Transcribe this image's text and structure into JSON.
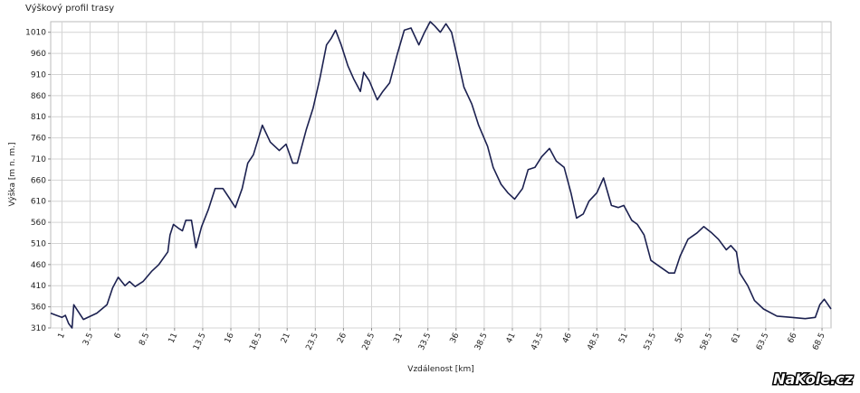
{
  "chart_data": {
    "type": "line",
    "title": "Výškový profil trasy",
    "x_label": "Vzdálenost [km]",
    "y_label": "Výška [m n. m.]",
    "x": [
      0,
      0.5,
      1.0,
      1.3,
      1.6,
      1.9,
      2.05,
      2.9,
      4.1,
      5.0,
      5.5,
      6.0,
      6.6,
      7.0,
      7.5,
      8.2,
      9.0,
      9.6,
      10.4,
      10.6,
      10.9,
      11.4,
      11.7,
      12.0,
      12.5,
      12.9,
      13.4,
      14.0,
      14.6,
      15.3,
      15.8,
      16.4,
      17.0,
      17.5,
      18.0,
      18.8,
      19.5,
      20.3,
      20.9,
      21.5,
      21.9,
      22.7,
      23.3,
      23.9,
      24.5,
      24.9,
      25.3,
      25.8,
      26.4,
      26.9,
      27.5,
      27.8,
      28.3,
      29.0,
      29.5,
      30.1,
      30.8,
      31.4,
      32.0,
      32.7,
      33.2,
      33.7,
      34.1,
      34.6,
      35.1,
      35.6,
      36.2,
      36.7,
      37.4,
      38.0,
      38.8,
      39.3,
      40.0,
      40.6,
      41.2,
      41.9,
      42.4,
      43.0,
      43.6,
      44.3,
      44.9,
      45.6,
      46.2,
      46.7,
      47.3,
      47.8,
      48.5,
      49.1,
      49.8,
      50.4,
      50.9,
      51.6,
      52.1,
      52.7,
      53.3,
      54.1,
      54.9,
      55.4,
      55.9,
      56.6,
      57.4,
      58.0,
      58.7,
      59.3,
      60.0,
      60.4,
      60.9,
      61.2,
      61.9,
      62.5,
      63.3,
      64.5,
      65.8,
      67.0,
      67.9,
      68.3,
      68.7,
      69.3
    ],
    "values": [
      345,
      340,
      335,
      340,
      320,
      310,
      365,
      330,
      345,
      365,
      405,
      430,
      410,
      420,
      408,
      420,
      445,
      460,
      490,
      530,
      555,
      545,
      540,
      565,
      565,
      500,
      550,
      590,
      640,
      640,
      620,
      595,
      640,
      700,
      720,
      790,
      750,
      730,
      745,
      700,
      700,
      780,
      830,
      900,
      980,
      995,
      1015,
      980,
      930,
      900,
      870,
      915,
      895,
      850,
      870,
      890,
      960,
      1015,
      1020,
      980,
      1010,
      1035,
      1025,
      1010,
      1030,
      1010,
      940,
      880,
      840,
      790,
      740,
      690,
      650,
      630,
      615,
      640,
      685,
      690,
      715,
      735,
      705,
      690,
      630,
      570,
      580,
      610,
      630,
      665,
      600,
      595,
      600,
      565,
      555,
      530,
      470,
      455,
      440,
      440,
      480,
      520,
      535,
      550,
      535,
      520,
      495,
      505,
      490,
      440,
      410,
      375,
      355,
      338,
      335,
      332,
      335,
      365,
      378,
      355
    ],
    "color": "#1c2150",
    "xlim": [
      0,
      69.3
    ],
    "ylim": [
      310,
      1035
    ],
    "xticks": [
      1,
      3.5,
      6,
      8.5,
      11,
      13.5,
      16,
      18.5,
      21,
      23.5,
      26,
      28.5,
      31,
      33.5,
      36,
      38.5,
      41,
      43.5,
      46,
      48.5,
      51,
      53.5,
      56,
      58.5,
      61,
      63.5,
      66,
      68.5
    ],
    "yticks": [
      310,
      360,
      410,
      460,
      510,
      560,
      610,
      660,
      710,
      760,
      810,
      860,
      910,
      960,
      1010
    ],
    "grid": true
  },
  "brand": "NaKole.cz"
}
